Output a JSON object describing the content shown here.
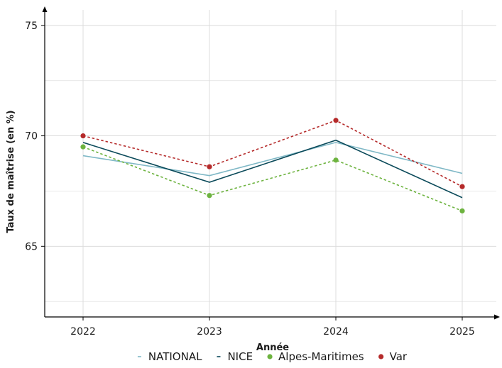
{
  "chart_data": {
    "type": "line",
    "title": "",
    "xlabel": "Année",
    "ylabel": "Taux de maîtrise (en %)",
    "categories": [
      "2022",
      "2023",
      "2024",
      "2025"
    ],
    "ylim": [
      61.8,
      75.7
    ],
    "yticks": [
      65,
      70,
      75
    ],
    "grid": true,
    "legend_position": "bottom",
    "series": [
      {
        "name": "NATIONAL",
        "values": [
          69.1,
          68.2,
          69.7,
          68.3
        ],
        "color": "#7fb8c6",
        "style": "solid",
        "markers": false
      },
      {
        "name": "NICE",
        "values": [
          69.7,
          67.9,
          69.8,
          67.2
        ],
        "color": "#0b4a5a",
        "style": "solid",
        "markers": false
      },
      {
        "name": "Alpes-Maritimes",
        "values": [
          69.5,
          67.3,
          68.9,
          66.6
        ],
        "color": "#6db33f",
        "style": "dashed",
        "markers": true
      },
      {
        "name": "Var",
        "values": [
          70.0,
          68.6,
          70.7,
          67.7
        ],
        "color": "#b52a2a",
        "style": "dashed",
        "markers": true
      }
    ]
  }
}
